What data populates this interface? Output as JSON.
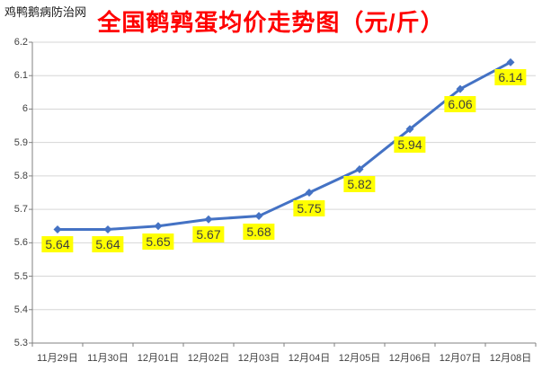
{
  "site": {
    "watermark": "鸡鸭鹅病防治网"
  },
  "chart_data": {
    "type": "line",
    "title": "全国鹌鹑蛋均价走势图（元/斤）",
    "xlabel": "",
    "ylabel": "",
    "categories": [
      "11月29日",
      "11月30日",
      "12月01日",
      "12月02日",
      "12月03日",
      "12月04日",
      "12月05日",
      "12月06日",
      "12月07日",
      "12月08日"
    ],
    "series": [
      {
        "name": "全国鹌鹑蛋均价",
        "values": [
          5.64,
          5.64,
          5.65,
          5.67,
          5.68,
          5.75,
          5.82,
          5.94,
          6.06,
          6.14
        ]
      }
    ],
    "data_labels": [
      "5.64",
      "5.64",
      "5.65",
      "5.67",
      "5.68",
      "5.75",
      "5.82",
      "5.94",
      "6.06",
      "6.14"
    ],
    "ylim": [
      5.3,
      6.2
    ],
    "ytick_step": 0.1,
    "ytick_labels": [
      "5.3",
      "5.4",
      "5.5",
      "5.6",
      "5.7",
      "5.8",
      "5.9",
      "6",
      "6.1",
      "6.2"
    ],
    "grid": "horizontal",
    "legend": "none",
    "marker": "diamond",
    "colors": {
      "line": "#4472C4",
      "marker": "#4472C4",
      "title": "#FF0000",
      "label_bg": "#FFFF00",
      "label_text": "#3F3F3F",
      "axis": "#808080",
      "gridline": "#D6D6D6",
      "tick_text": "#404040",
      "background": "#FFFFFF"
    }
  }
}
